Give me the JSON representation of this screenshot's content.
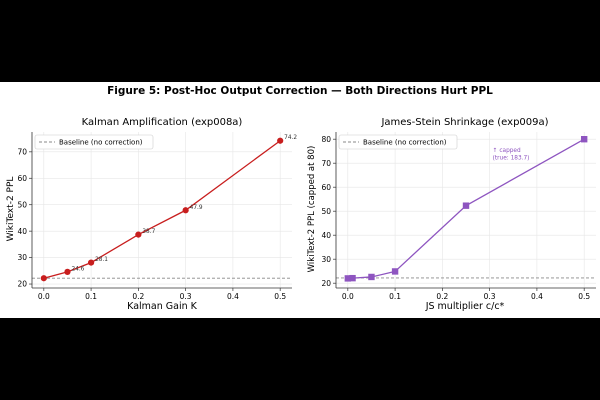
{
  "figure": {
    "title": "Figure 5: Post-Hoc Output Correction — Both Directions Hurt PPL"
  },
  "chart_data": [
    {
      "type": "line",
      "title": "Kalman Amplification (exp008a)",
      "xlabel": "Kalman Gain K",
      "ylabel": "WikiText-2 PPL",
      "x": [
        0.0,
        0.05,
        0.1,
        0.2,
        0.3,
        0.5
      ],
      "series": [
        {
          "name": "",
          "values": [
            22.2,
            24.6,
            28.1,
            38.7,
            47.9,
            74.2
          ],
          "color": "#c81e1e",
          "marker": "circle"
        }
      ],
      "data_labels": [
        "",
        "24.6",
        "28.1",
        "38.7",
        "47.9",
        "74.2"
      ],
      "baseline": {
        "name": "Baseline (no correction)",
        "value": 22.2,
        "style": "dashed",
        "color": "#888888"
      },
      "xlim": [
        -0.025,
        0.525
      ],
      "ylim": [
        18.5,
        77.5
      ],
      "xticks": [
        0.0,
        0.1,
        0.2,
        0.3,
        0.4,
        0.5
      ],
      "xtick_labels": [
        "0.0",
        "0.1",
        "0.2",
        "0.3",
        "0.4",
        "0.5"
      ],
      "yticks": [
        20,
        30,
        40,
        50,
        60,
        70
      ],
      "ytick_labels": [
        "20",
        "30",
        "40",
        "50",
        "60",
        "70"
      ],
      "grid": true,
      "legend": "top-left"
    },
    {
      "type": "line",
      "title": "James-Stein Shrinkage (exp009a)",
      "xlabel": "JS multiplier c/c*",
      "ylabel": "WikiText-2 PPL (capped at 80)",
      "x": [
        0.0,
        0.01,
        0.05,
        0.1,
        0.25,
        0.5
      ],
      "series": [
        {
          "name": "",
          "values": [
            22.0,
            22.1,
            22.6,
            24.9,
            52.3,
            80.0
          ],
          "color": "#8e55c0",
          "marker": "square"
        }
      ],
      "baseline": {
        "name": "Baseline (no correction)",
        "value": 22.2,
        "style": "dashed",
        "color": "#888888"
      },
      "annotation": {
        "lines": [
          "↑ capped",
          "(true: 183.7)"
        ],
        "color": "#8e55c0"
      },
      "xlim": [
        -0.025,
        0.525
      ],
      "ylim": [
        18,
        83
      ],
      "xticks": [
        0.0,
        0.1,
        0.2,
        0.3,
        0.4,
        0.5
      ],
      "xtick_labels": [
        "0.0",
        "0.1",
        "0.2",
        "0.3",
        "0.4",
        "0.5"
      ],
      "yticks": [
        20,
        30,
        40,
        50,
        60,
        70,
        80
      ],
      "ytick_labels": [
        "20",
        "30",
        "40",
        "50",
        "60",
        "70",
        "80"
      ],
      "grid": true,
      "legend": "top-left"
    }
  ]
}
